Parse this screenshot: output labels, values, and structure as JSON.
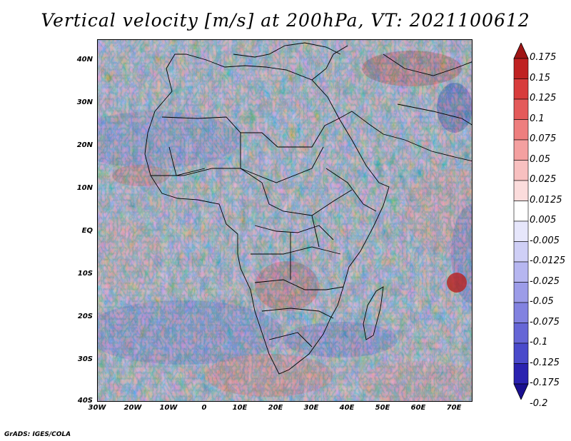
{
  "title": "Vertical velocity [m/s] at 200hPa, VT: 2021100612",
  "credit": "GrADS: IGES/COLA",
  "colors": {
    "ocean_base": "#d6d6f5",
    "red_dark": "#b01c1c",
    "blue_dark": "#2a1aa8",
    "coast": "#000000"
  },
  "map": {
    "lat_labels": [
      "40N",
      "30N",
      "20N",
      "10N",
      "EQ",
      "10S",
      "20S",
      "30S",
      "40S"
    ],
    "lon_labels": [
      "30W",
      "20W",
      "10W",
      "0",
      "10E",
      "20E",
      "30E",
      "40E",
      "50E",
      "60E",
      "70E"
    ]
  },
  "colorbar": {
    "labels": [
      "0.175",
      "0.15",
      "0.125",
      "0.1",
      "0.075",
      "0.05",
      "0.025",
      "0.0125",
      "0.005",
      "-0.005",
      "-0.0125",
      "-0.025",
      "-0.05",
      "-0.075",
      "-0.1",
      "-0.125",
      "-0.175",
      "-0.2"
    ],
    "colors": [
      "#a01616",
      "#bf2222",
      "#d83c3c",
      "#e45a5a",
      "#ee7e7e",
      "#f4a0a0",
      "#f8c0c0",
      "#fbdcdc",
      "#ffffff",
      "#e6e6fb",
      "#cfcff6",
      "#b6b6f0",
      "#9c9ce8",
      "#8282e0",
      "#6666d6",
      "#4a4acb",
      "#2a22b0",
      "#1a1090"
    ]
  }
}
